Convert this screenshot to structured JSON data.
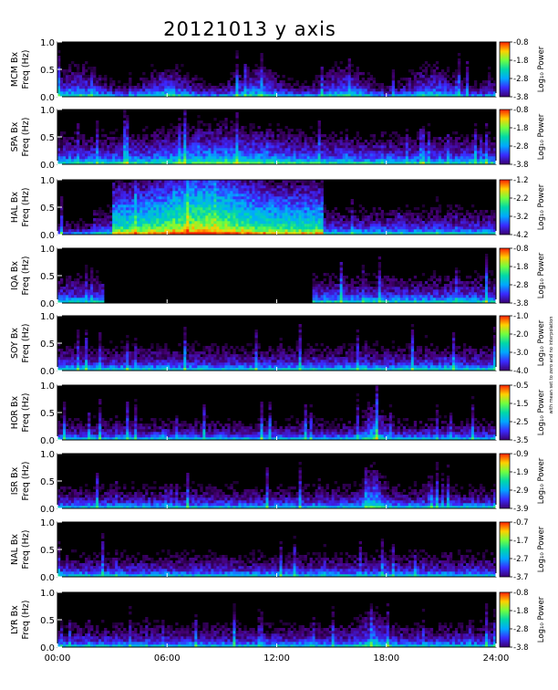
{
  "chart_data": {
    "type": "heatmap",
    "title": "20121013 y axis",
    "x_tick_labels": [
      "00:00",
      "06:00",
      "12:00",
      "18:00",
      "24:00"
    ],
    "xlim_hours": [
      0,
      24
    ],
    "y_tick_labels": [
      "0.0",
      "0.5",
      "1.0"
    ],
    "ylim_hz": [
      0,
      1.0
    ],
    "colorbar_label": "Log₁₀ Power",
    "side_note": "with mean set to zero and no interpolation",
    "colormap": [
      "#000000",
      "#3b0070",
      "#3a2aff",
      "#00a8ff",
      "#00d8a8",
      "#70ff40",
      "#ffd000",
      "#ff2000"
    ],
    "panels": [
      {
        "station": "MCM",
        "ylabel_1": "MCM Bx",
        "ylabel_2": "Freq (Hz)",
        "colorbar_ticks": [
          "-0.8",
          "-1.8",
          "-2.8",
          "-3.8"
        ]
      },
      {
        "station": "SPA",
        "ylabel_1": "SPA Bx",
        "ylabel_2": "Freq (Hz)",
        "colorbar_ticks": [
          "-0.8",
          "-1.8",
          "-2.8",
          "-3.8"
        ]
      },
      {
        "station": "HAL",
        "ylabel_1": "HAL Bx",
        "ylabel_2": "Freq (Hz)",
        "colorbar_ticks": [
          "-1.2",
          "-2.2",
          "-3.2",
          "-4.2"
        ]
      },
      {
        "station": "IQA",
        "ylabel_1": "IQA Bx",
        "ylabel_2": "Freq (Hz)",
        "colorbar_ticks": [
          "-0.8",
          "-1.8",
          "-2.8",
          "-3.8"
        ],
        "data_gap_hours": [
          2.6,
          13.9
        ]
      },
      {
        "station": "SOY",
        "ylabel_1": "SOY Bx",
        "ylabel_2": "Freq (Hz)",
        "colorbar_ticks": [
          "-1.0",
          "-2.0",
          "-3.0",
          "-4.0"
        ]
      },
      {
        "station": "HOR",
        "ylabel_1": "HOR Bx",
        "ylabel_2": "Freq (Hz)",
        "colorbar_ticks": [
          "-0.5",
          "-1.5",
          "-2.5",
          "-3.5"
        ]
      },
      {
        "station": "ISR",
        "ylabel_1": "ISR Bx",
        "ylabel_2": "Freq (Hz)",
        "colorbar_ticks": [
          "-0.9",
          "-1.9",
          "-2.9",
          "-3.9"
        ]
      },
      {
        "station": "NAL",
        "ylabel_1": "NAL Bx",
        "ylabel_2": "Freq (Hz)",
        "colorbar_ticks": [
          "-0.7",
          "-1.7",
          "-2.7",
          "-3.7"
        ]
      },
      {
        "station": "LYR",
        "ylabel_1": "LYR Bx",
        "ylabel_2": "Freq (Hz)",
        "colorbar_ticks": [
          "-0.8",
          "-1.8",
          "-2.8",
          "-3.8"
        ]
      }
    ]
  }
}
